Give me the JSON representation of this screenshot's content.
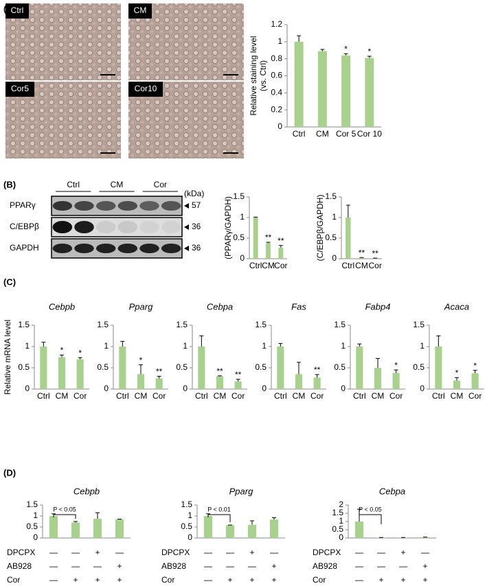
{
  "panel_labels": [
    "(A)",
    "(B)",
    "(C)",
    "(D)"
  ],
  "micrographs": [
    {
      "label": "Ctrl"
    },
    {
      "label": "CM"
    },
    {
      "label": "Cor5"
    },
    {
      "label": "Cor10"
    }
  ],
  "blot": {
    "lanes": [
      "Ctrl",
      "CM",
      "Cor"
    ],
    "unit": "(kDa)",
    "rows": [
      {
        "name": "PPARγ",
        "size": 57
      },
      {
        "name": "C/EBPβ",
        "size": 36
      },
      {
        "name": "GAPDH",
        "size": 36
      }
    ]
  },
  "chart_data": [
    {
      "type": "bar",
      "ylabel": [
        "Relative staining level",
        "(vs. Ctrl)"
      ],
      "categories": [
        "Ctrl",
        "CM",
        "Cor 5",
        "Cor 10"
      ],
      "values": [
        1.0,
        0.89,
        0.84,
        0.81
      ],
      "errors": [
        0.07,
        0.02,
        0.02,
        0.02
      ],
      "annotations": [
        null,
        null,
        "*",
        "*"
      ],
      "color": "#a9d18e",
      "ylim": [
        0,
        1.2
      ],
      "yticks": [
        0,
        0.2,
        0.4,
        0.6,
        0.8,
        1,
        1.2
      ]
    },
    {
      "type": "bar",
      "ylabel": "(PPARγ/GAPDH)",
      "categories": [
        "Ctrl",
        "CM",
        "Cor"
      ],
      "values": [
        1.0,
        0.38,
        0.27
      ],
      "errors": [
        0.01,
        0.02,
        0.05
      ],
      "annotations": [
        null,
        "**",
        "**"
      ],
      "color": "#a9d18e",
      "ylim": [
        0,
        1.5
      ],
      "yticks": [
        0,
        0.5,
        1,
        1.5
      ]
    },
    {
      "type": "bar",
      "ylabel": "(C/EBPβ/GAPDH)",
      "categories": [
        "Ctrl",
        "CM",
        "Cor"
      ],
      "values": [
        1.0,
        0.02,
        0.01
      ],
      "errors": [
        0.3,
        0.01,
        0.005
      ],
      "annotations": [
        null,
        "**",
        "**"
      ],
      "color": "#a9d18e",
      "ylim": [
        0,
        1.5
      ],
      "yticks": [
        0,
        0.5,
        1,
        1.5
      ]
    },
    {
      "type": "bar",
      "title": "Cebpb",
      "ylabel": "Relative mRNA level",
      "categories": [
        "Ctrl",
        "CM",
        "Cor"
      ],
      "values": [
        1.0,
        0.75,
        0.7
      ],
      "errors": [
        0.1,
        0.05,
        0.04
      ],
      "annotations": [
        null,
        "*",
        "*"
      ],
      "color": "#a9d18e",
      "ylim": [
        0,
        1.5
      ],
      "yticks": [
        0,
        0.5,
        1,
        1.5
      ]
    },
    {
      "type": "bar",
      "title": "Pparg",
      "categories": [
        "Ctrl",
        "CM",
        "Cor"
      ],
      "values": [
        1.0,
        0.35,
        0.25
      ],
      "errors": [
        0.12,
        0.22,
        0.05
      ],
      "annotations": [
        null,
        "*",
        "**"
      ],
      "color": "#a9d18e",
      "ylim": [
        0,
        1.5
      ],
      "yticks": [
        0,
        0.5,
        1,
        1.5
      ]
    },
    {
      "type": "bar",
      "title": "Cebpa",
      "categories": [
        "Ctrl",
        "CM",
        "Cor"
      ],
      "values": [
        1.0,
        0.3,
        0.18
      ],
      "errors": [
        0.25,
        0.01,
        0.05
      ],
      "annotations": [
        null,
        "**",
        "**"
      ],
      "color": "#a9d18e",
      "ylim": [
        0,
        1.5
      ],
      "yticks": [
        0,
        0.5,
        1,
        1.5
      ]
    },
    {
      "type": "bar",
      "title": "Fas",
      "categories": [
        "Ctrl",
        "CM",
        "Cor"
      ],
      "values": [
        1.0,
        0.35,
        0.27
      ],
      "errors": [
        0.07,
        0.28,
        0.07
      ],
      "annotations": [
        null,
        null,
        "**"
      ],
      "color": "#a9d18e",
      "ylim": [
        0,
        1.5
      ],
      "yticks": [
        0,
        0.5,
        1,
        1.5
      ]
    },
    {
      "type": "bar",
      "title": "Fabp4",
      "categories": [
        "Ctrl",
        "CM",
        "Cor"
      ],
      "values": [
        1.0,
        0.5,
        0.38
      ],
      "errors": [
        0.06,
        0.22,
        0.07
      ],
      "annotations": [
        null,
        null,
        "*"
      ],
      "color": "#a9d18e",
      "ylim": [
        0,
        1.5
      ],
      "yticks": [
        0,
        0.5,
        1,
        1.5
      ]
    },
    {
      "type": "bar",
      "title": "Acaca",
      "categories": [
        "Ctrl",
        "CM",
        "Cor"
      ],
      "values": [
        1.0,
        0.2,
        0.37
      ],
      "errors": [
        0.25,
        0.07,
        0.07
      ],
      "annotations": [
        null,
        "*",
        "*"
      ],
      "color": "#a9d18e",
      "ylim": [
        0,
        1.5
      ],
      "yticks": [
        0,
        0.5,
        1,
        1.5
      ]
    },
    {
      "type": "bar",
      "title": "Cebpb",
      "categories": [
        null,
        null,
        null,
        null
      ],
      "values": [
        1.0,
        0.7,
        0.87,
        0.85
      ],
      "errors": [
        0.1,
        0.05,
        0.28,
        0.01
      ],
      "comparison_label": "P < 0.05",
      "color": "#a9d18e",
      "ylim": [
        0,
        1.5
      ],
      "yticks": [
        0,
        0.5,
        1,
        1.5
      ],
      "conditions": [
        {
          "name": "DPCPX",
          "signs": [
            "—",
            "—",
            "+",
            "—"
          ]
        },
        {
          "name": "AB928",
          "signs": [
            "—",
            "—",
            "—",
            "+"
          ]
        },
        {
          "name": "Cor",
          "signs": [
            "—",
            "+",
            "+",
            "+"
          ]
        }
      ]
    },
    {
      "type": "bar",
      "title": "Pparg",
      "categories": [
        null,
        null,
        null,
        null
      ],
      "values": [
        1.0,
        0.58,
        0.6,
        0.84
      ],
      "errors": [
        0.1,
        0.01,
        0.18,
        0.08
      ],
      "comparison_label": "P < 0.01",
      "color": "#a9d18e",
      "ylim": [
        0,
        1.5
      ],
      "yticks": [
        0,
        0.5,
        1,
        1.5
      ],
      "conditions": [
        {
          "name": "DPCPX",
          "signs": [
            "—",
            "—",
            "+",
            "—"
          ]
        },
        {
          "name": "AB928",
          "signs": [
            "—",
            "—",
            "—",
            "+"
          ]
        },
        {
          "name": "Cor",
          "signs": [
            "—",
            "+",
            "+",
            "+"
          ]
        }
      ]
    },
    {
      "type": "bar",
      "title": "Cebpa",
      "categories": [
        null,
        null,
        null,
        null
      ],
      "values": [
        1.0,
        0.02,
        0.02,
        0.04
      ],
      "errors": [
        0.75,
        0.01,
        0.01,
        0.01
      ],
      "comparison_label": "P < 0.05",
      "color": "#a9d18e",
      "ylim": [
        0,
        2
      ],
      "yticks": [
        0,
        0.5,
        1,
        1.5,
        2
      ],
      "conditions": [
        {
          "name": "DPCPX",
          "signs": [
            "—",
            "—",
            "+",
            "—"
          ]
        },
        {
          "name": "AB928",
          "signs": [
            "—",
            "—",
            "—",
            "+"
          ]
        },
        {
          "name": "Cor",
          "signs": [
            "—",
            "+",
            "+",
            "+"
          ]
        }
      ]
    }
  ]
}
